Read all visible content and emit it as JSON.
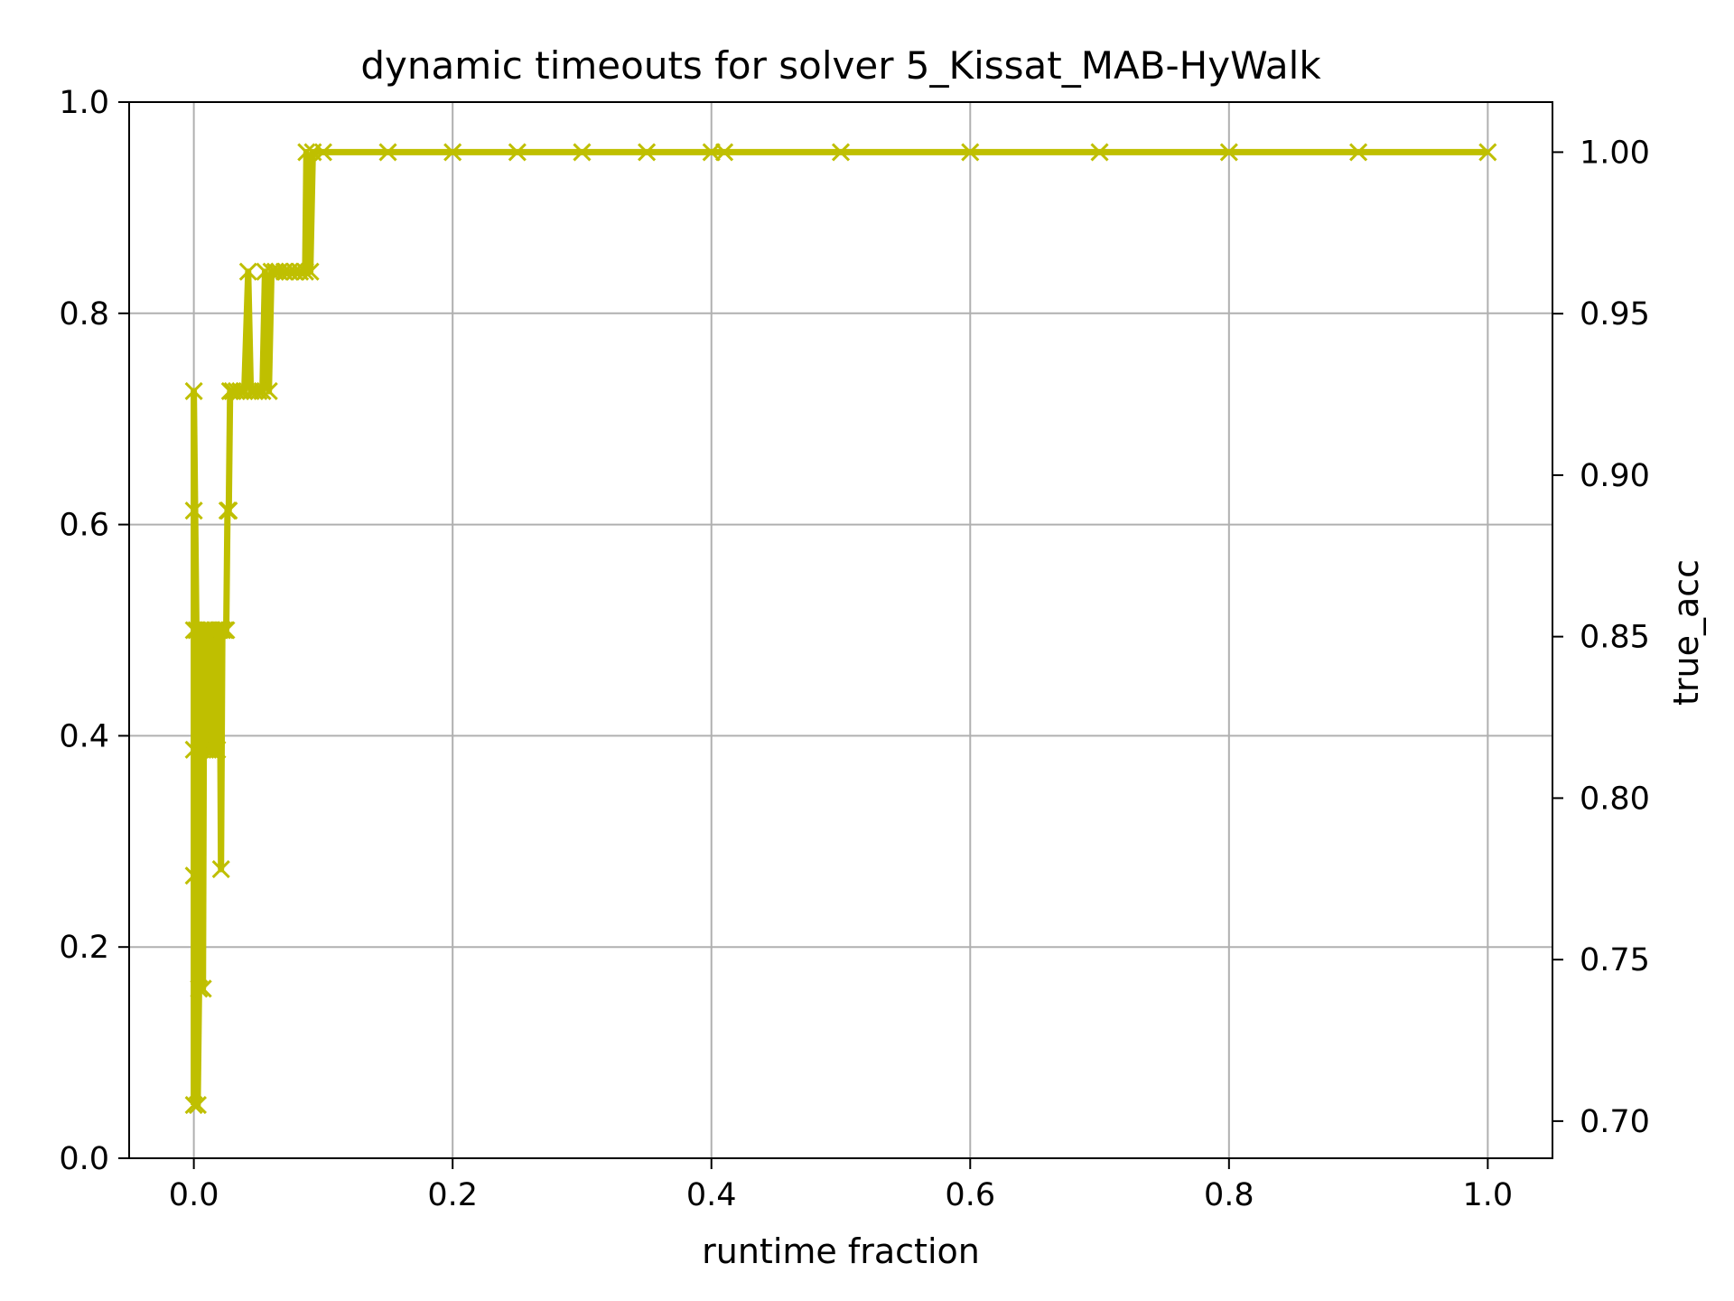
{
  "chart_data": {
    "type": "line",
    "title": "dynamic timeouts for solver 5_Kissat_MAB-HyWalk",
    "xlabel": "runtime fraction",
    "ylabel_right": "true_acc",
    "ylabel_right_color": "#ff0000",
    "series_color": "#bfbf00",
    "marker": "x",
    "grid": true,
    "xlim": [
      -0.05,
      1.05
    ],
    "ylim_left": [
      0.0,
      1.0
    ],
    "ylim_right": [
      0.6885,
      1.0155
    ],
    "x_ticks": [
      "0.0",
      "0.2",
      "0.4",
      "0.6",
      "0.8",
      "1.0"
    ],
    "y_ticks_left": [
      "0.0",
      "0.2",
      "0.4",
      "0.6",
      "0.8",
      "1.0"
    ],
    "y_ticks_right": [
      "0.70",
      "0.75",
      "0.80",
      "0.85",
      "0.90",
      "0.95",
      "1.00"
    ],
    "series": [
      {
        "axis": "right",
        "points": [
          [
            0.0,
            0.705
          ],
          [
            0.0,
            0.776
          ],
          [
            0.0,
            0.815
          ],
          [
            0.0,
            0.852
          ],
          [
            0.0,
            0.889
          ],
          [
            0.0,
            0.926
          ],
          [
            0.002,
            0.852
          ],
          [
            0.003,
            0.705
          ],
          [
            0.004,
            0.741
          ],
          [
            0.005,
            0.815
          ],
          [
            0.006,
            0.852
          ],
          [
            0.007,
            0.741
          ],
          [
            0.008,
            0.852
          ],
          [
            0.009,
            0.815
          ],
          [
            0.01,
            0.852
          ],
          [
            0.011,
            0.815
          ],
          [
            0.012,
            0.852
          ],
          [
            0.013,
            0.815
          ],
          [
            0.014,
            0.852
          ],
          [
            0.015,
            0.815
          ],
          [
            0.016,
            0.852
          ],
          [
            0.017,
            0.852
          ],
          [
            0.018,
            0.815
          ],
          [
            0.019,
            0.852
          ],
          [
            0.02,
            0.852
          ],
          [
            0.021,
            0.778
          ],
          [
            0.022,
            0.852
          ],
          [
            0.024,
            0.852
          ],
          [
            0.025,
            0.852
          ],
          [
            0.026,
            0.889
          ],
          [
            0.027,
            0.889
          ],
          [
            0.028,
            0.926
          ],
          [
            0.03,
            0.926
          ],
          [
            0.033,
            0.926
          ],
          [
            0.036,
            0.926
          ],
          [
            0.039,
            0.926
          ],
          [
            0.042,
            0.963
          ],
          [
            0.044,
            0.926
          ],
          [
            0.047,
            0.926
          ],
          [
            0.05,
            0.926
          ],
          [
            0.053,
            0.926
          ],
          [
            0.055,
            0.963
          ],
          [
            0.058,
            0.926
          ],
          [
            0.06,
            0.963
          ],
          [
            0.063,
            0.963
          ],
          [
            0.066,
            0.963
          ],
          [
            0.07,
            0.963
          ],
          [
            0.074,
            0.963
          ],
          [
            0.078,
            0.963
          ],
          [
            0.082,
            0.963
          ],
          [
            0.086,
            0.963
          ],
          [
            0.087,
            1.0
          ],
          [
            0.09,
            0.963
          ],
          [
            0.092,
            1.0
          ],
          [
            0.1,
            1.0
          ],
          [
            0.15,
            1.0
          ],
          [
            0.2,
            1.0
          ],
          [
            0.25,
            1.0
          ],
          [
            0.3,
            1.0
          ],
          [
            0.35,
            1.0
          ],
          [
            0.4,
            1.0
          ],
          [
            0.41,
            1.0
          ],
          [
            0.5,
            1.0
          ],
          [
            0.6,
            1.0
          ],
          [
            0.7,
            1.0
          ],
          [
            0.8,
            1.0
          ],
          [
            0.9,
            1.0
          ],
          [
            1.0,
            1.0
          ]
        ]
      }
    ]
  }
}
